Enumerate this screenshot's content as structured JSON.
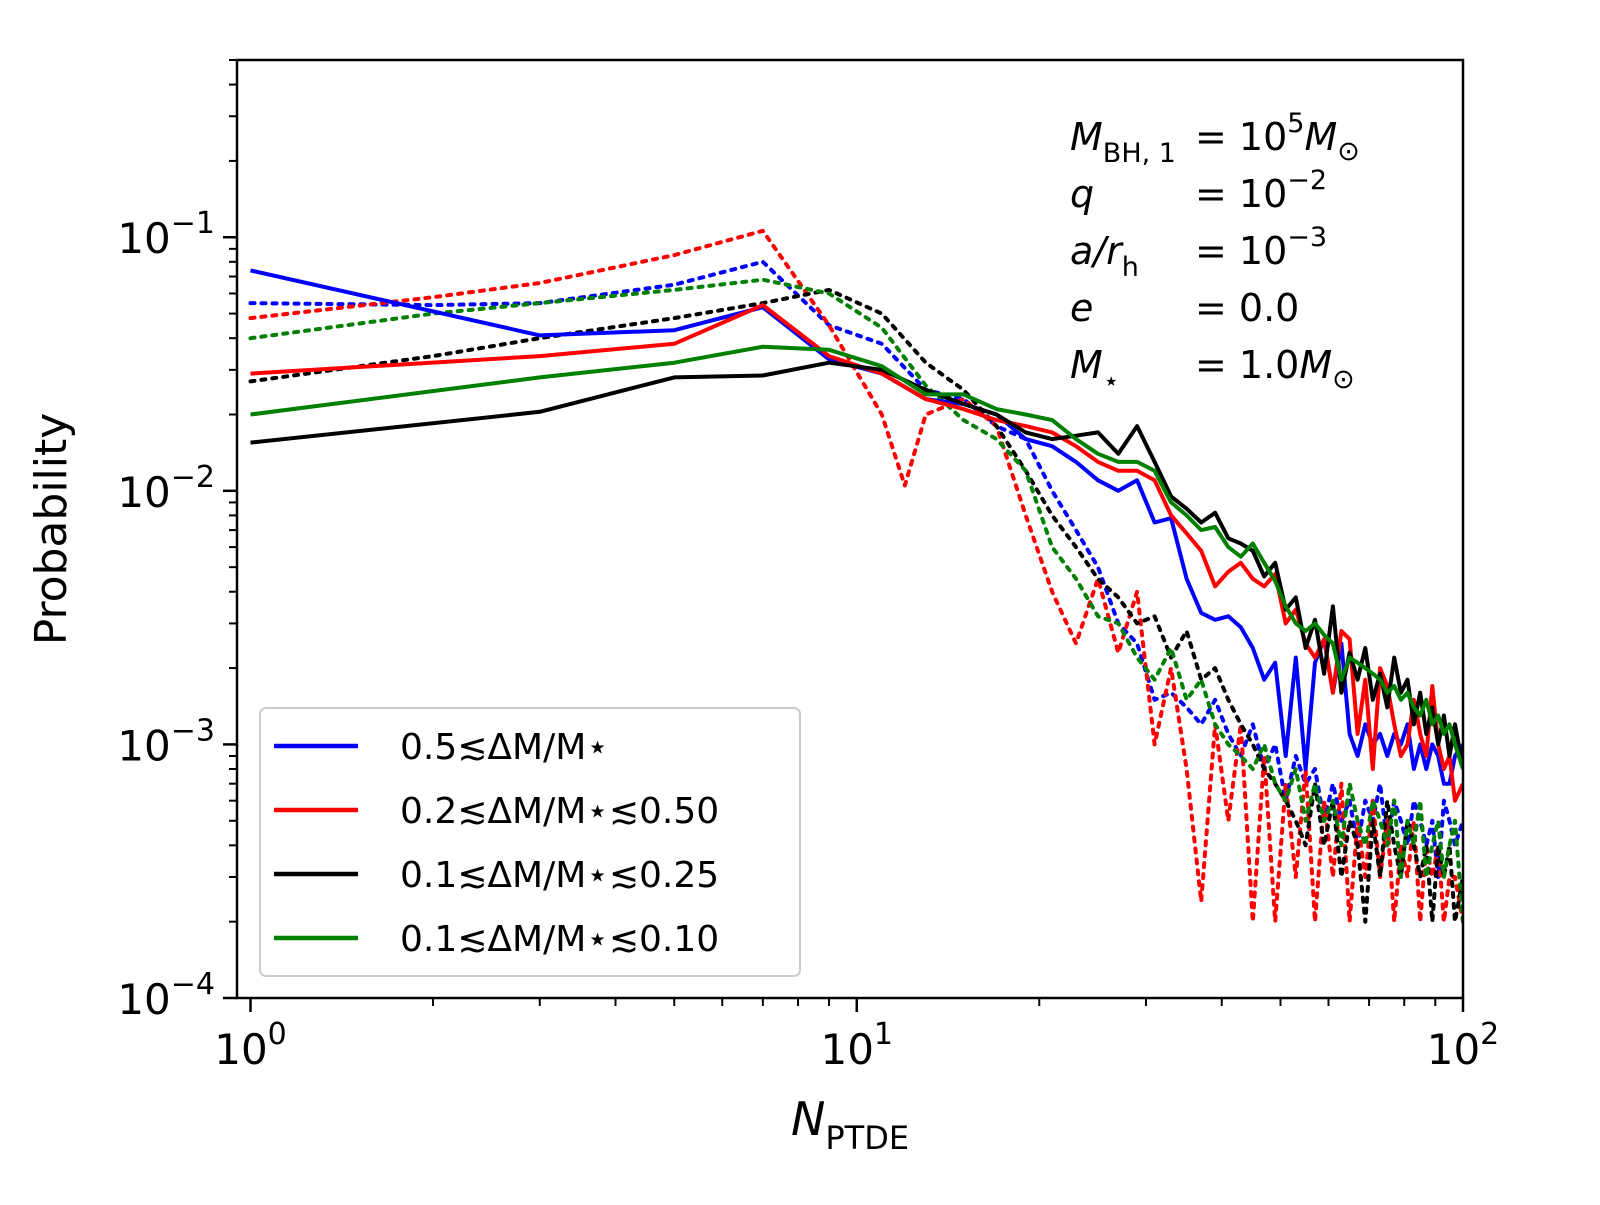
{
  "chart_data": {
    "type": "line",
    "xscale": "log",
    "yscale": "log",
    "xlim": [
      0.95,
      100
    ],
    "ylim": [
      0.0001,
      0.5
    ],
    "xlabel": {
      "main": "N",
      "sub": "PTDE"
    },
    "ylabel": "Probability",
    "x_ticks": [
      {
        "value": 1,
        "base": "10",
        "exp": "0"
      },
      {
        "value": 10,
        "base": "10",
        "exp": "1"
      },
      {
        "value": 100,
        "base": "10",
        "exp": "2"
      }
    ],
    "y_ticks": [
      {
        "value": 0.1,
        "base": "10",
        "exp": "−1"
      },
      {
        "value": 0.01,
        "base": "10",
        "exp": "−2"
      },
      {
        "value": 0.001,
        "base": "10",
        "exp": "−3"
      },
      {
        "value": 0.0001,
        "base": "10",
        "exp": "−4"
      }
    ],
    "annotations": [
      {
        "left": "M",
        "left_sub": "BH, 1",
        "right": "= 10",
        "right_sup": "5",
        "right_tail": "M",
        "right_tail_sub": "⊙"
      },
      {
        "left": "q",
        "left_sub": "",
        "right": "= 10",
        "right_sup": "−2",
        "right_tail": "",
        "right_tail_sub": ""
      },
      {
        "left": "a/r",
        "left_sub": "h",
        "right": "= 10",
        "right_sup": "−3",
        "right_tail": "",
        "right_tail_sub": ""
      },
      {
        "left": "e",
        "left_sub": "",
        "right": "= 0.0",
        "right_sup": "",
        "right_tail": "",
        "right_tail_sub": ""
      },
      {
        "left": "M",
        "left_sub": "⋆",
        "right": "= 1.0",
        "right_sup": "",
        "right_tail": "M",
        "right_tail_sub": "⊙"
      }
    ],
    "legend_position": "lower-left",
    "series": [
      {
        "name": "0.5≲ΔM/M⋆",
        "color": "#0000ff",
        "style": "solid",
        "x": [
          1,
          3,
          5,
          7,
          9,
          11,
          13,
          15,
          17,
          19,
          21,
          23,
          25,
          27,
          29,
          31,
          33,
          35,
          37,
          39,
          41,
          43,
          45,
          47,
          49,
          51,
          53,
          55,
          57,
          59,
          61,
          63,
          65,
          67,
          69,
          71,
          73,
          75,
          77,
          79,
          81,
          83,
          85,
          87,
          89,
          91,
          93,
          95,
          97,
          100
        ],
        "y": [
          0.074,
          0.041,
          0.043,
          0.053,
          0.033,
          0.029,
          0.023,
          0.022,
          0.02,
          0.016,
          0.015,
          0.013,
          0.011,
          0.01,
          0.011,
          0.0075,
          0.0078,
          0.0045,
          0.0033,
          0.0031,
          0.0032,
          0.0029,
          0.0024,
          0.0018,
          0.0021,
          0.0009,
          0.0022,
          0.0008,
          0.0021,
          0.0026,
          0.0016,
          0.0025,
          0.0011,
          0.0009,
          0.0012,
          0.001,
          0.0011,
          0.0009,
          0.0011,
          0.001,
          0.0012,
          0.0008,
          0.001,
          0.0008,
          0.001,
          0.0009,
          0.0007,
          0.0007,
          0.0009,
          0.001
        ]
      },
      {
        "name": "0.2≲ΔM/M⋆≲0.50",
        "color": "#ff0000",
        "style": "solid",
        "x": [
          1,
          3,
          5,
          7,
          9,
          11,
          13,
          15,
          17,
          19,
          21,
          23,
          25,
          27,
          29,
          31,
          33,
          35,
          37,
          39,
          41,
          43,
          45,
          47,
          49,
          51,
          53,
          55,
          57,
          59,
          61,
          63,
          65,
          67,
          69,
          71,
          73,
          75,
          77,
          79,
          81,
          83,
          85,
          87,
          89,
          91,
          93,
          95,
          97,
          100
        ],
        "y": [
          0.029,
          0.034,
          0.038,
          0.054,
          0.034,
          0.029,
          0.023,
          0.021,
          0.019,
          0.018,
          0.017,
          0.015,
          0.013,
          0.012,
          0.012,
          0.011,
          0.008,
          0.0068,
          0.0058,
          0.0042,
          0.0048,
          0.0052,
          0.0045,
          0.0042,
          0.0047,
          0.003,
          0.0034,
          0.0025,
          0.0022,
          0.0026,
          0.0016,
          0.0028,
          0.0026,
          0.0011,
          0.0018,
          0.0008,
          0.002,
          0.0017,
          0.0012,
          0.0009,
          0.001,
          0.0015,
          0.0011,
          0.0009,
          0.0017,
          0.001,
          0.0008,
          0.0009,
          0.0006,
          0.0007
        ]
      },
      {
        "name": "0.1≲ΔM/M⋆≲0.25",
        "color": "#000000",
        "style": "solid",
        "x": [
          1,
          3,
          5,
          7,
          9,
          11,
          13,
          15,
          17,
          19,
          21,
          23,
          25,
          27,
          29,
          31,
          33,
          35,
          37,
          39,
          41,
          43,
          45,
          47,
          49,
          51,
          53,
          55,
          57,
          59,
          61,
          63,
          65,
          67,
          69,
          71,
          73,
          75,
          77,
          79,
          81,
          83,
          85,
          87,
          89,
          91,
          93,
          95,
          97,
          100
        ],
        "y": [
          0.0155,
          0.0205,
          0.028,
          0.0285,
          0.032,
          0.03,
          0.025,
          0.022,
          0.02,
          0.017,
          0.016,
          0.0165,
          0.017,
          0.014,
          0.018,
          0.013,
          0.0095,
          0.0085,
          0.0075,
          0.0082,
          0.0065,
          0.0062,
          0.0058,
          0.0046,
          0.0052,
          0.0034,
          0.0038,
          0.0024,
          0.0031,
          0.0019,
          0.0035,
          0.0016,
          0.0023,
          0.0018,
          0.0024,
          0.0015,
          0.0019,
          0.0014,
          0.0022,
          0.0016,
          0.0018,
          0.0012,
          0.0016,
          0.0011,
          0.0014,
          0.001,
          0.0013,
          0.0009,
          0.0012,
          0.0008
        ]
      },
      {
        "name": "0.1≲ΔM/M⋆≲0.10",
        "color": "#008000",
        "style": "solid",
        "x": [
          1,
          3,
          5,
          7,
          9,
          11,
          13,
          15,
          17,
          19,
          21,
          23,
          25,
          27,
          29,
          31,
          33,
          35,
          37,
          39,
          41,
          43,
          45,
          47,
          49,
          51,
          53,
          55,
          57,
          59,
          61,
          63,
          65,
          67,
          69,
          71,
          73,
          75,
          77,
          79,
          81,
          83,
          85,
          87,
          89,
          91,
          93,
          95,
          97,
          100
        ],
        "y": [
          0.02,
          0.028,
          0.032,
          0.037,
          0.036,
          0.031,
          0.024,
          0.024,
          0.021,
          0.02,
          0.019,
          0.016,
          0.014,
          0.013,
          0.013,
          0.012,
          0.009,
          0.008,
          0.007,
          0.0072,
          0.006,
          0.0055,
          0.0062,
          0.0052,
          0.0044,
          0.0035,
          0.003,
          0.0028,
          0.003,
          0.0027,
          0.0025,
          0.0018,
          0.0022,
          0.0021,
          0.002,
          0.0019,
          0.0018,
          0.0016,
          0.0017,
          0.0015,
          0.0016,
          0.0014,
          0.0013,
          0.0015,
          0.0012,
          0.0013,
          0.0011,
          0.0012,
          0.001,
          0.0008
        ]
      },
      {
        "color": "#0000ff",
        "style": "dotted",
        "x": [
          1,
          2,
          3,
          5,
          7,
          9,
          11,
          13,
          15,
          17,
          19,
          21,
          23,
          25,
          27,
          29,
          31,
          33,
          35,
          37,
          39,
          41,
          43,
          45,
          47,
          49,
          51,
          53,
          55,
          57,
          59,
          61,
          63,
          65,
          67,
          69,
          71,
          73,
          75,
          77,
          79,
          81,
          83,
          85,
          87,
          89,
          91,
          93,
          95,
          97,
          100
        ],
        "y": [
          0.055,
          0.054,
          0.055,
          0.065,
          0.08,
          0.045,
          0.038,
          0.025,
          0.023,
          0.018,
          0.016,
          0.01,
          0.007,
          0.005,
          0.003,
          0.0025,
          0.0015,
          0.0016,
          0.0014,
          0.0012,
          0.0015,
          0.0011,
          0.0009,
          0.0012,
          0.0008,
          0.001,
          0.0006,
          0.0009,
          0.0007,
          0.0008,
          0.0005,
          0.0007,
          0.0005,
          0.0006,
          0.0004,
          0.0006,
          0.0005,
          0.0007,
          0.0004,
          0.0006,
          0.0005,
          0.0004,
          0.0006,
          0.0005,
          0.0004,
          0.0005,
          0.0003,
          0.0006,
          0.0005,
          0.0004,
          0.0005
        ]
      },
      {
        "color": "#ff0000",
        "style": "dotted",
        "x": [
          1,
          2,
          3,
          5,
          7,
          9,
          11,
          12,
          13,
          15,
          17,
          19,
          21,
          23,
          25,
          27,
          29,
          31,
          33,
          35,
          37,
          39,
          41,
          43,
          45,
          47,
          49,
          51,
          53,
          55,
          57,
          59,
          61,
          63,
          65,
          67,
          69,
          71,
          73,
          75,
          77,
          79,
          81,
          83,
          85,
          87,
          89,
          91,
          93,
          95,
          97,
          100
        ],
        "y": [
          0.048,
          0.058,
          0.066,
          0.085,
          0.106,
          0.045,
          0.02,
          0.0105,
          0.02,
          0.023,
          0.018,
          0.008,
          0.004,
          0.0025,
          0.0045,
          0.0023,
          0.004,
          0.001,
          0.002,
          0.0008,
          0.00024,
          0.0012,
          0.0005,
          0.0012,
          0.0002,
          0.0009,
          0.0002,
          0.0007,
          0.0003,
          0.0008,
          0.0002,
          0.0006,
          0.0003,
          0.0007,
          0.0002,
          0.0005,
          0.0003,
          0.0006,
          0.0003,
          0.0005,
          0.0002,
          0.0004,
          0.0003,
          0.0005,
          0.0002,
          0.0004,
          0.0003,
          0.0004,
          0.0002,
          0.0003,
          0.0003,
          0.0002
        ]
      },
      {
        "color": "#000000",
        "style": "dotted",
        "x": [
          1,
          2,
          3,
          5,
          7,
          9,
          11,
          13,
          15,
          17,
          19,
          21,
          23,
          25,
          27,
          29,
          31,
          33,
          35,
          37,
          39,
          41,
          43,
          45,
          47,
          49,
          51,
          53,
          55,
          57,
          59,
          61,
          63,
          65,
          67,
          69,
          71,
          73,
          75,
          77,
          79,
          81,
          83,
          85,
          87,
          89,
          91,
          93,
          95,
          97,
          100
        ],
        "y": [
          0.027,
          0.034,
          0.04,
          0.048,
          0.055,
          0.062,
          0.05,
          0.032,
          0.025,
          0.018,
          0.012,
          0.008,
          0.006,
          0.0045,
          0.0038,
          0.003,
          0.0032,
          0.0022,
          0.0028,
          0.0018,
          0.002,
          0.0015,
          0.0012,
          0.001,
          0.0008,
          0.0007,
          0.0006,
          0.0005,
          0.0004,
          0.0007,
          0.0004,
          0.0006,
          0.0003,
          0.0005,
          0.0004,
          0.0002,
          0.0005,
          0.0003,
          0.0006,
          0.0004,
          0.0003,
          0.0005,
          0.0004,
          0.0003,
          0.0004,
          0.0002,
          0.0004,
          0.0003,
          0.0004,
          0.0002,
          0.0003
        ]
      },
      {
        "color": "#008000",
        "style": "dotted",
        "x": [
          1,
          2,
          3,
          5,
          7,
          9,
          11,
          13,
          15,
          17,
          19,
          21,
          23,
          25,
          27,
          29,
          31,
          33,
          35,
          37,
          39,
          41,
          43,
          45,
          47,
          49,
          51,
          53,
          55,
          57,
          59,
          61,
          63,
          65,
          67,
          69,
          71,
          73,
          75,
          77,
          79,
          81,
          83,
          85,
          87,
          89,
          91,
          93,
          95,
          97,
          100
        ],
        "y": [
          0.04,
          0.05,
          0.055,
          0.062,
          0.068,
          0.06,
          0.044,
          0.026,
          0.019,
          0.016,
          0.012,
          0.006,
          0.0045,
          0.0032,
          0.003,
          0.0022,
          0.0018,
          0.0024,
          0.0015,
          0.0018,
          0.0012,
          0.001,
          0.0009,
          0.0008,
          0.001,
          0.0007,
          0.0006,
          0.0008,
          0.0005,
          0.0007,
          0.0005,
          0.0006,
          0.0004,
          0.0007,
          0.0005,
          0.0004,
          0.0006,
          0.0005,
          0.0004,
          0.0006,
          0.0003,
          0.0005,
          0.0004,
          0.0006,
          0.0003,
          0.0004,
          0.0005,
          0.0003,
          0.0004,
          0.0005,
          0.0002
        ]
      }
    ]
  }
}
